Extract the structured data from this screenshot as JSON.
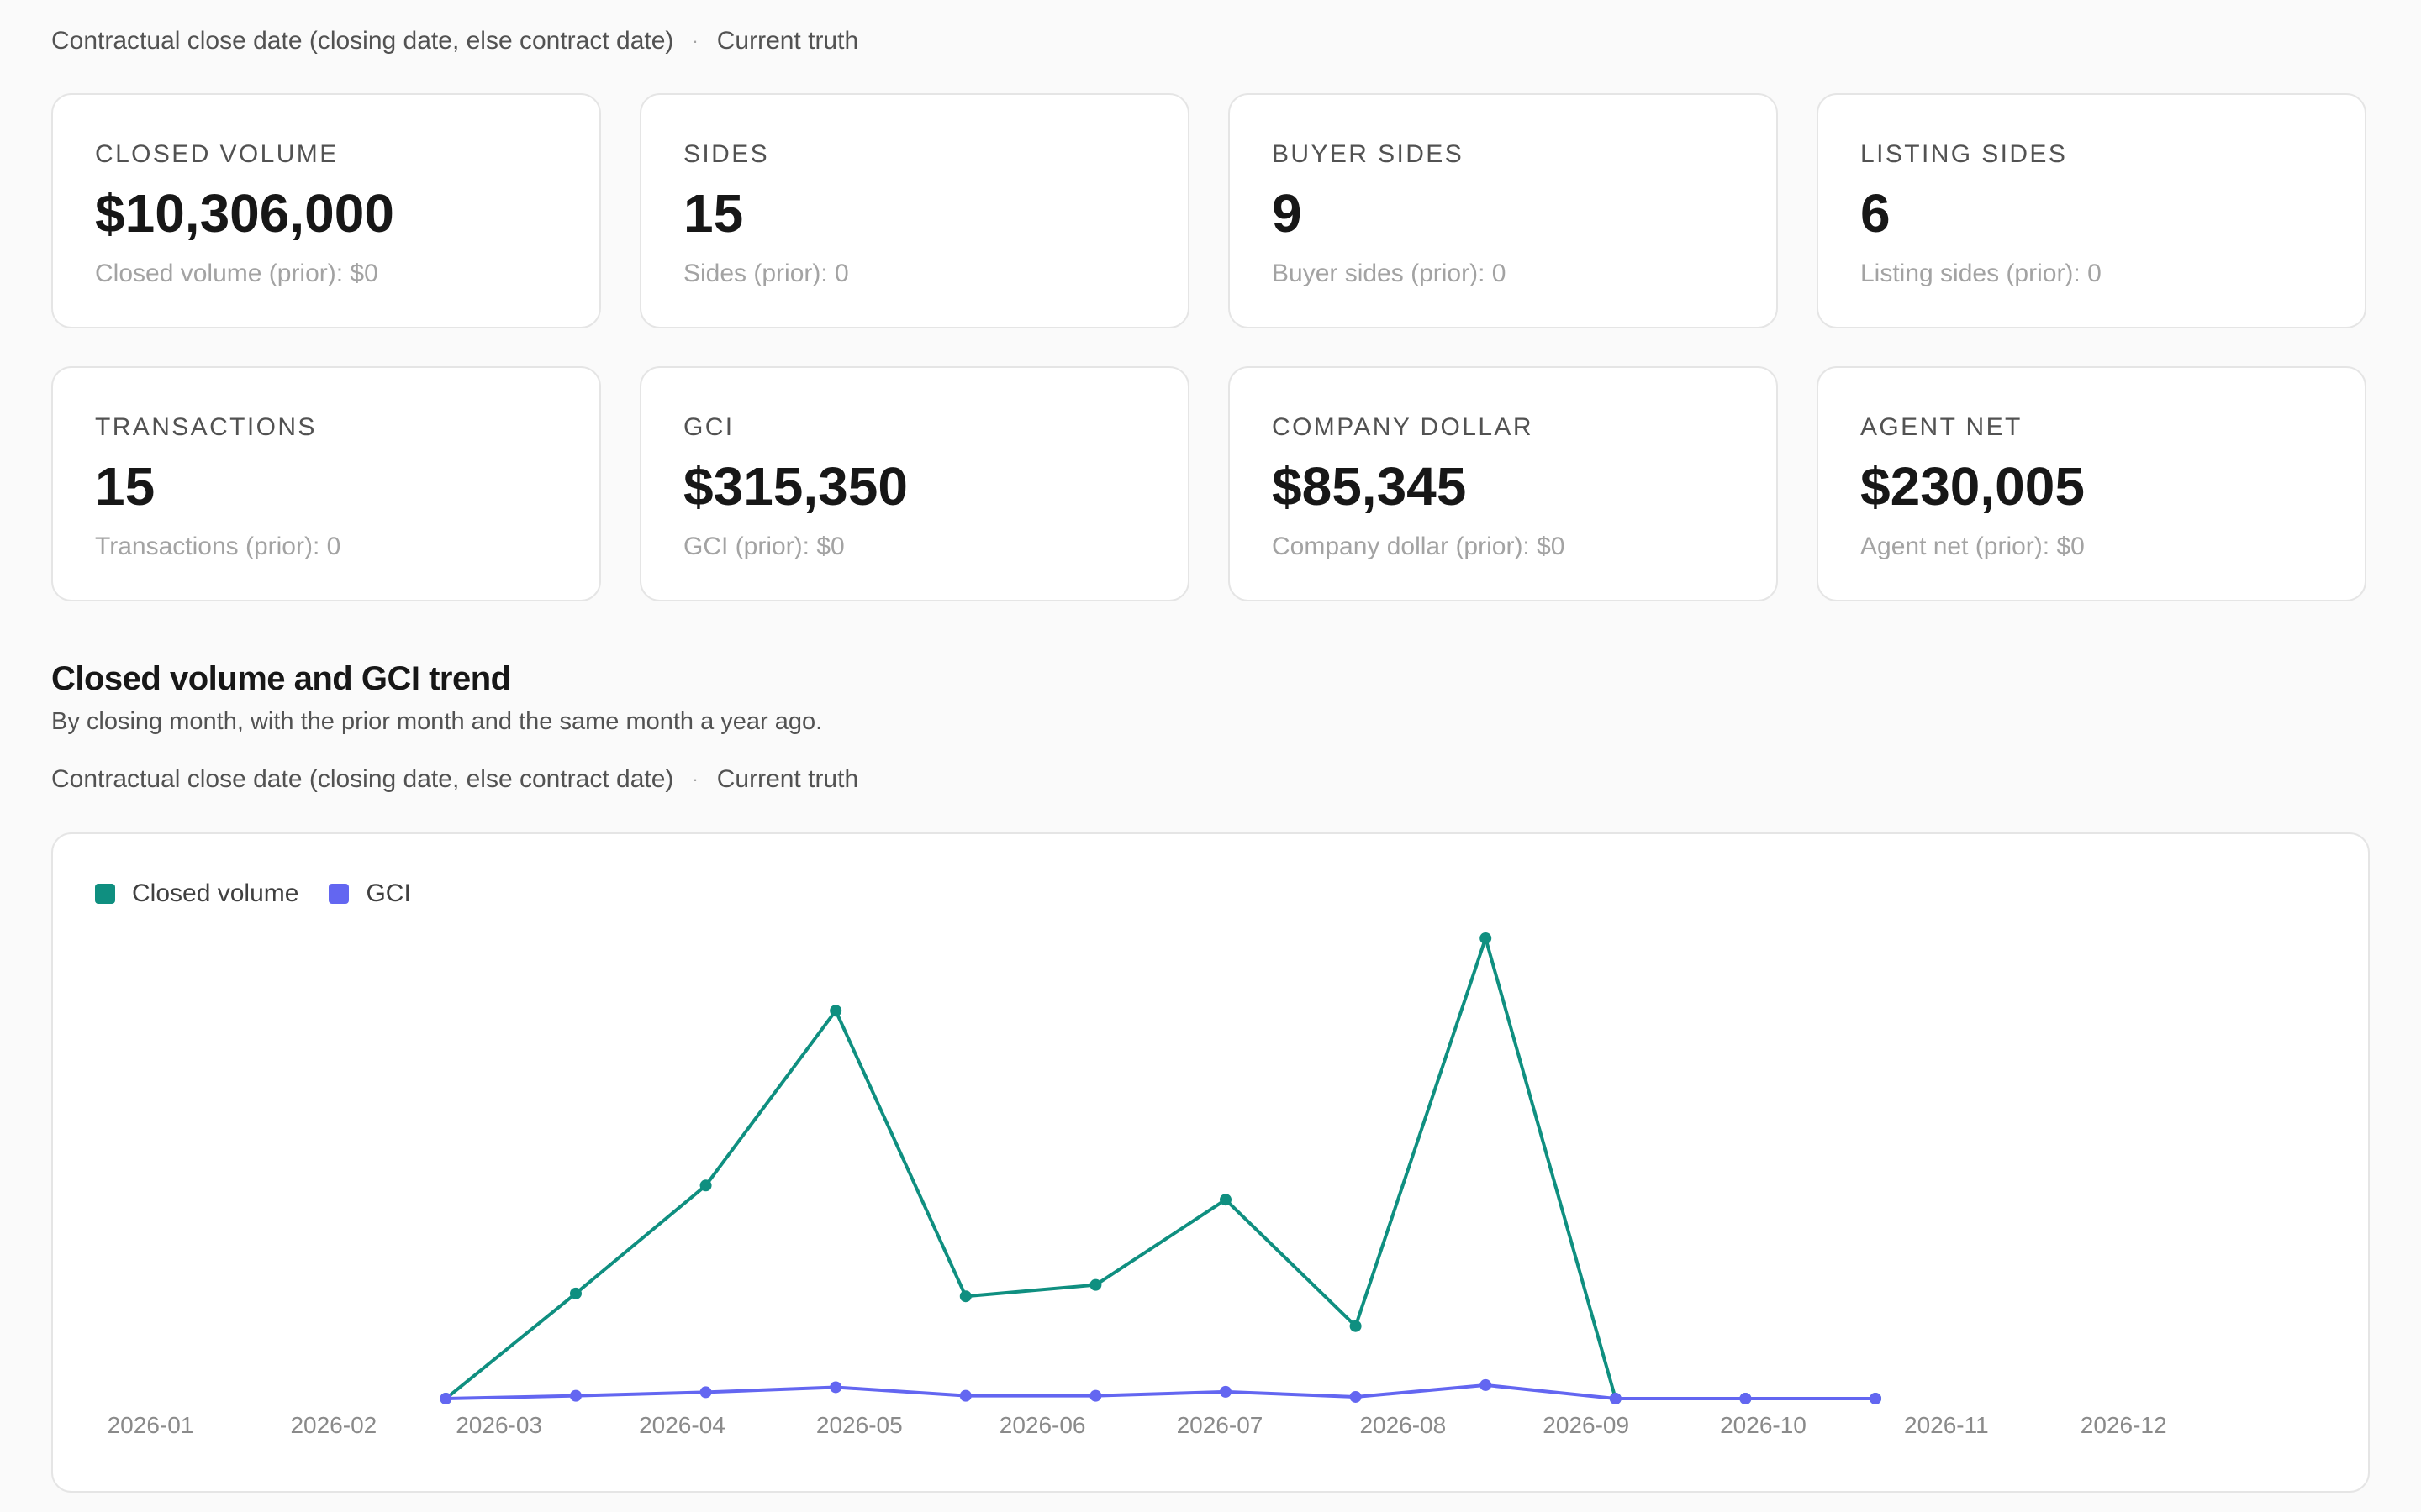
{
  "top_meta": {
    "date_basis": "Contractual close date (closing date, else contract date)",
    "truth_mode": "Current truth"
  },
  "kpis": [
    {
      "label": "CLOSED VOLUME",
      "value": "$10,306,000",
      "sub": "Closed volume (prior): $0"
    },
    {
      "label": "SIDES",
      "value": "15",
      "sub": "Sides (prior): 0"
    },
    {
      "label": "BUYER SIDES",
      "value": "9",
      "sub": "Buyer sides (prior): 0"
    },
    {
      "label": "LISTING SIDES",
      "value": "6",
      "sub": "Listing sides (prior): 0"
    },
    {
      "label": "TRANSACTIONS",
      "value": "15",
      "sub": "Transactions (prior): 0"
    },
    {
      "label": "GCI",
      "value": "$315,350",
      "sub": "GCI (prior): $0"
    },
    {
      "label": "COMPANY DOLLAR",
      "value": "$85,345",
      "sub": "Company dollar (prior): $0"
    },
    {
      "label": "AGENT NET",
      "value": "$230,005",
      "sub": "Agent net (prior): $0"
    }
  ],
  "trend": {
    "title": "Closed volume and GCI trend",
    "subtitle": "By closing month, with the prior month and the same month a year ago.",
    "date_basis": "Contractual close date (closing date, else contract date)",
    "truth_mode": "Current truth"
  },
  "colors": {
    "closed_volume": "#0f8f80",
    "gci": "#6366f1"
  },
  "chart_data": {
    "type": "line",
    "x_ticks": [
      "2026-01",
      "2026-02",
      "2026-03",
      "2026-04",
      "2026-05",
      "2026-06",
      "2026-07",
      "2026-08",
      "2026-09",
      "2026-10",
      "2026-11",
      "2026-12"
    ],
    "x_range": [
      "2026-01-01",
      "2026-12-31"
    ],
    "x_dates": [
      "2026-02-20",
      "2026-03-14",
      "2026-04-05",
      "2026-04-27",
      "2026-05-19",
      "2026-06-10",
      "2026-07-02",
      "2026-07-24",
      "2026-08-15",
      "2026-09-06",
      "2026-09-28",
      "2026-10-20"
    ],
    "series": [
      {
        "name": "Closed volume",
        "values": [
          0,
          740000,
          1500000,
          2730000,
          720000,
          800000,
          1400000,
          510000,
          3240000,
          0,
          0,
          0
        ]
      },
      {
        "name": "GCI",
        "values": [
          0,
          20000,
          45000,
          80000,
          20000,
          20000,
          48000,
          12000,
          95000,
          0,
          0,
          0
        ]
      }
    ],
    "ylim": [
      0,
      3500000
    ],
    "legend_position": "top-left",
    "grid": false,
    "xlabel": "",
    "ylabel": ""
  }
}
